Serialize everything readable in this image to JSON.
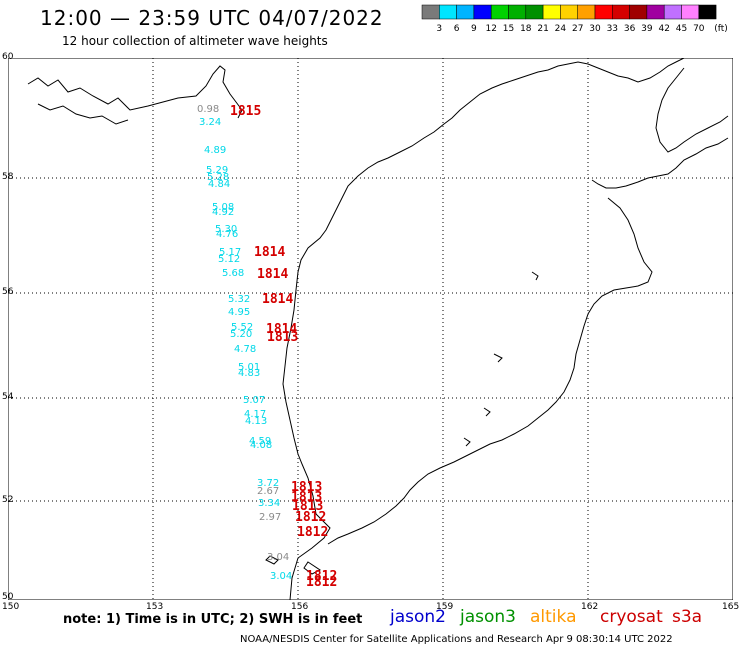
{
  "title": "12:00 — 23:59 UTC 04/07/2022",
  "subtitle": "12 hour collection of altimeter wave heights",
  "colorbar": {
    "unit": "(ft)",
    "ticks": [
      "3",
      "6",
      "9",
      "12",
      "15",
      "18",
      "21",
      "24",
      "27",
      "30",
      "33",
      "36",
      "39",
      "42",
      "45",
      "70"
    ],
    "colors": [
      "#7a7a7a",
      "#00e5ff",
      "#00b4ff",
      "#0000ff",
      "#00d200",
      "#00b000",
      "#009000",
      "#ffff00",
      "#ffd200",
      "#ffa000",
      "#ff0000",
      "#d40000",
      "#a00000",
      "#a000a0",
      "#c070ff",
      "#ff80ff",
      "#000000"
    ]
  },
  "axes": {
    "lat_ticks": [
      "60",
      "58",
      "56",
      "54",
      "52",
      "50"
    ],
    "lon_ticks": [
      "150",
      "153",
      "156",
      "159",
      "162",
      "165"
    ]
  },
  "observations": [
    {
      "text": "0.98",
      "color": "#8a8a8a"
    },
    {
      "text": "3.24",
      "color": "#00d8e8"
    },
    {
      "text": "4.89",
      "color": "#00d8e8"
    },
    {
      "text": "5.29",
      "color": "#00d8e8"
    },
    {
      "text": "5.28",
      "color": "#00d8e8"
    },
    {
      "text": "4.84",
      "color": "#00d8e8"
    },
    {
      "text": "5.08",
      "color": "#00d8e8"
    },
    {
      "text": "4.92",
      "color": "#00d8e8"
    },
    {
      "text": "5.30",
      "color": "#00d8e8"
    },
    {
      "text": "4.76",
      "color": "#00d8e8"
    },
    {
      "text": "5.17",
      "color": "#00d8e8"
    },
    {
      "text": "5.12",
      "color": "#00d8e8"
    },
    {
      "text": "5.68",
      "color": "#00d8e8"
    },
    {
      "text": "5.32",
      "color": "#00d8e8"
    },
    {
      "text": "4.95",
      "color": "#00d8e8"
    },
    {
      "text": "5.52",
      "color": "#00d8e8"
    },
    {
      "text": "5.20",
      "color": "#00d8e8"
    },
    {
      "text": "4.78",
      "color": "#00d8e8"
    },
    {
      "text": "5.01",
      "color": "#00d8e8"
    },
    {
      "text": "4.83",
      "color": "#00d8e8"
    },
    {
      "text": "5.07",
      "color": "#00d8e8"
    },
    {
      "text": "4.17",
      "color": "#00d8e8"
    },
    {
      "text": "4.13",
      "color": "#00d8e8"
    },
    {
      "text": "4.59",
      "color": "#00d8e8"
    },
    {
      "text": "4.08",
      "color": "#00d8e8"
    },
    {
      "text": "3.72",
      "color": "#00d8e8"
    },
    {
      "text": "2.67",
      "color": "#8a8a8a"
    },
    {
      "text": "3.34",
      "color": "#00d8e8"
    },
    {
      "text": "2.97",
      "color": "#8a8a8a"
    },
    {
      "text": "3.04",
      "color": "#8a8a8a"
    },
    {
      "text": "3.04",
      "color": "#00d8e8"
    }
  ],
  "passes": [
    "1815",
    "1814",
    "1814",
    "1814",
    "1814",
    "1813",
    "1813",
    "1813",
    "1813",
    "1812",
    "1812",
    "1812",
    "1812"
  ],
  "note": "note: 1) Time is in UTC; 2) SWH is in feet",
  "legend": [
    {
      "label": "jason2",
      "color": "#0000cc"
    },
    {
      "label": "jason3",
      "color": "#009000"
    },
    {
      "label": "altika",
      "color": "#ff9900"
    },
    {
      "label": "cryosat",
      "color": "#cc0000"
    },
    {
      "label": "s3a",
      "color": "#cc0000"
    }
  ],
  "footer": "NOAA/NESDIS Center for Satellite Applications and Research   Apr  9 08:30:14 UTC 2022"
}
